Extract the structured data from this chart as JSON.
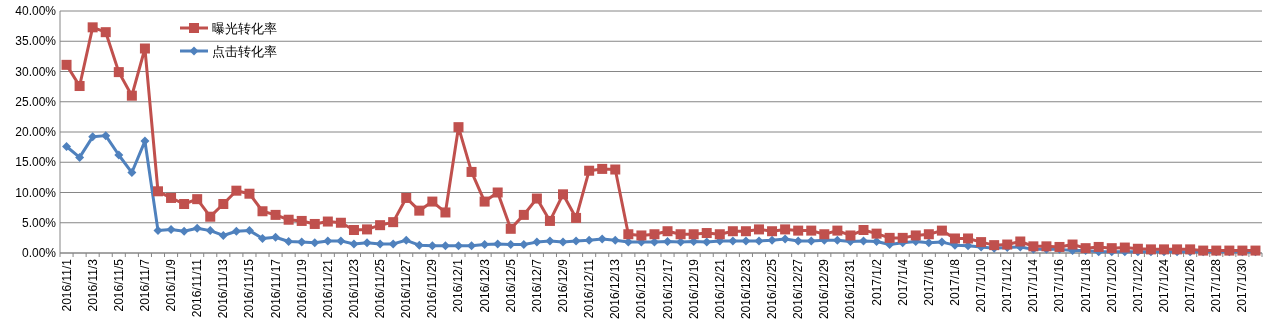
{
  "chart_data": {
    "type": "line",
    "categories": [
      "2016/11/1",
      null,
      "2016/11/3",
      null,
      "2016/11/5",
      null,
      "2016/11/7",
      null,
      "2016/11/9",
      null,
      "2016/11/11",
      null,
      "2016/11/13",
      null,
      "2016/11/15",
      null,
      "2016/11/17",
      null,
      "2016/11/19",
      null,
      "2016/11/21",
      null,
      "2016/11/23",
      null,
      "2016/11/25",
      null,
      "2016/11/27",
      null,
      "2016/11/29",
      null,
      "2016/12/1",
      null,
      "2016/12/3",
      null,
      "2016/12/5",
      null,
      "2016/12/7",
      null,
      "2016/12/9",
      null,
      "2016/12/11",
      null,
      "2016/12/13",
      null,
      "2016/12/15",
      null,
      "2016/12/17",
      null,
      "2016/12/19",
      null,
      "2016/12/21",
      null,
      "2016/12/23",
      null,
      "2016/12/25",
      null,
      "2016/12/27",
      null,
      "2016/12/29",
      null,
      "2016/12/31",
      null,
      "2017/1/2",
      null,
      "2017/1/4",
      null,
      "2017/1/6",
      null,
      "2017/1/8",
      null,
      "2017/1/10",
      null,
      "2017/1/12",
      null,
      "2017/1/14",
      null,
      "2017/1/16",
      null,
      "2017/1/18",
      null,
      "2017/1/20",
      null,
      "2017/1/22",
      null,
      "2017/1/24",
      null,
      "2017/1/26",
      null,
      "2017/1/28",
      null,
      "2017/1/30",
      null
    ],
    "series": [
      {
        "name": "曝光转化率",
        "color": "#c0504d",
        "marker": "square",
        "values": [
          31.1,
          27.6,
          37.3,
          36.5,
          29.9,
          26.0,
          33.8,
          10.2,
          9.1,
          8.1,
          8.9,
          6.0,
          8.1,
          10.3,
          9.8,
          6.9,
          6.3,
          5.5,
          5.3,
          4.8,
          5.2,
          5.0,
          3.8,
          3.9,
          4.6,
          5.1,
          9.1,
          7.0,
          8.5,
          6.7,
          20.8,
          13.4,
          8.5,
          10.0,
          4.0,
          6.3,
          9.0,
          5.3,
          9.7,
          5.8,
          13.6,
          13.9,
          13.8,
          3.1,
          2.9,
          3.1,
          3.6,
          3.1,
          3.1,
          3.3,
          3.1,
          3.6,
          3.6,
          3.9,
          3.6,
          3.9,
          3.7,
          3.7,
          3.1,
          3.7,
          2.9,
          3.8,
          3.2,
          2.5,
          2.5,
          2.9,
          3.1,
          3.7,
          2.4,
          2.4,
          1.8,
          1.3,
          1.4,
          1.9,
          1.1,
          1.1,
          1.0,
          1.4,
          0.8,
          1.0,
          0.8,
          0.9,
          0.7,
          0.6,
          0.6,
          0.6,
          0.6,
          0.4,
          0.4,
          0.4,
          0.4,
          0.4
        ]
      },
      {
        "name": "点击转化率",
        "color": "#4f81bd",
        "marker": "diamond",
        "values": [
          17.6,
          15.8,
          19.2,
          19.4,
          16.2,
          13.3,
          18.5,
          3.7,
          3.9,
          3.6,
          4.1,
          3.7,
          2.9,
          3.6,
          3.7,
          2.4,
          2.6,
          1.9,
          1.8,
          1.7,
          2.0,
          2.0,
          1.5,
          1.7,
          1.5,
          1.5,
          2.1,
          1.3,
          1.2,
          1.2,
          1.2,
          1.2,
          1.4,
          1.5,
          1.4,
          1.4,
          1.8,
          2.0,
          1.8,
          2.0,
          2.1,
          2.3,
          2.1,
          1.8,
          1.8,
          1.8,
          1.9,
          1.8,
          1.9,
          1.8,
          2.0,
          2.0,
          2.0,
          2.0,
          2.1,
          2.3,
          2.0,
          2.0,
          2.1,
          2.1,
          1.9,
          2.0,
          1.9,
          1.4,
          1.7,
          1.9,
          1.7,
          1.8,
          1.3,
          1.2,
          1.0,
          0.8,
          0.9,
          1.0,
          0.6,
          0.6,
          0.6,
          0.4,
          0.4,
          0.2,
          0.2,
          0.2,
          0.2,
          0.2,
          0.2,
          0.2,
          0.2,
          0.2,
          0.2,
          0.2,
          0.2,
          0.2
        ]
      }
    ],
    "ylim": [
      0,
      40
    ],
    "yticks": [
      {
        "value": 0,
        "label": "0.00%"
      },
      {
        "value": 5,
        "label": "5.00%"
      },
      {
        "value": 10,
        "label": "10.00%"
      },
      {
        "value": 15,
        "label": "15.00%"
      },
      {
        "value": 20,
        "label": "20.00%"
      },
      {
        "value": 25,
        "label": "25.00%"
      },
      {
        "value": 30,
        "label": "30.00%"
      },
      {
        "value": 35,
        "label": "35.00%"
      },
      {
        "value": 40,
        "label": "40.00%"
      }
    ],
    "grid": "y",
    "legend": "top left",
    "line_style": "solid"
  }
}
